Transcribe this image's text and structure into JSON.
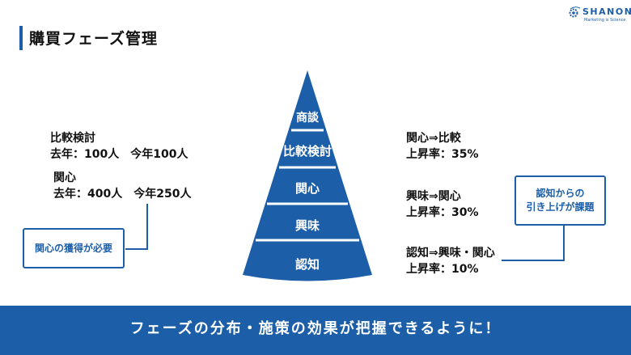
{
  "header": {
    "title": "購買フェーズ管理",
    "logo": {
      "word": "SHANON",
      "tagline": "Marketing is Science",
      "icon": "gear-swoosh-icon",
      "color": "#1c5fa8"
    }
  },
  "pyramid": {
    "stages": [
      "商談",
      "比較検討",
      "関心",
      "興味",
      "認知"
    ],
    "color": "#1c5fa8"
  },
  "left_stats": {
    "compare": {
      "title": "比較検討",
      "values": "去年：100人　今年100人"
    },
    "interest": {
      "title": "関心",
      "values": "去年：400人　今年250人"
    }
  },
  "callouts": {
    "acquire": "関心の獲得が必要",
    "lift_line1": "認知からの",
    "lift_line2": "引き上げが課題"
  },
  "conversions": [
    {
      "label": "関心⇒比較",
      "rate": "上昇率：35%"
    },
    {
      "label": "興味⇒関心",
      "rate": "上昇率：30%"
    },
    {
      "label": "認知⇒興味・関心",
      "rate": "上昇率：10%"
    }
  ],
  "footer": {
    "message": "フェーズの分布・施策の効果が把握できるように！",
    "color": "#1c5fa8"
  }
}
